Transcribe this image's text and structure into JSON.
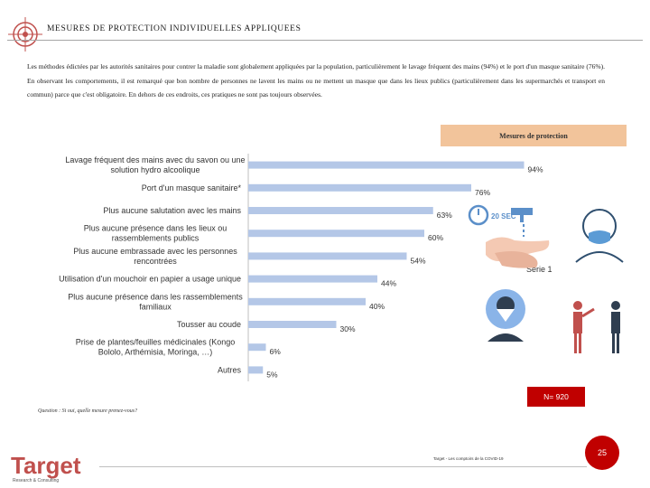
{
  "header": {
    "title": "MESURES DE PROTECTION INDIVIDUELLES APPLIQUEES"
  },
  "intro": {
    "text": "Les méthodes édictées par les autorités sanitaires pour contrer la maladie sont globalement appliquées par la population, particulièrement le lavage fréquent des mains (94%) et le port d'un masque sanitaire (76%). En observant les comportements, il est remarqué que bon nombre de personnes ne lavent les mains ou ne mettent un masque que dans les lieux publics (particulièrement dans les supermarchés et transport en commun) parce que c'est obligatoire. En dehors de ces endroits, ces pratiques ne sont pas toujours observées."
  },
  "legend_box": {
    "label": "Mesures de protection"
  },
  "chart_data": {
    "type": "bar",
    "orientation": "horizontal",
    "title": "Mesures de protection",
    "series": [
      {
        "name": "Série 1",
        "values": [
          94,
          76,
          63,
          60,
          54,
          44,
          40,
          30,
          6,
          5
        ]
      }
    ],
    "categories": [
      "Lavage fréquent des mains avec du savon ou une solution hydro alcoolique",
      "Port d'un masque sanitaire*",
      "Plus aucune salutation avec les mains",
      "Plus aucune présence dans les lieux ou rassemblements publics",
      "Plus aucune embrassade avec les personnes rencontrées",
      "Utilisation d'un mouchoir en papier a usage unique",
      "Plus aucune présence dans les rassemblements familiaux",
      "Tousser au coude",
      "Prise de plantes/feuilles médicinales (Kongo Bololo, Arthémisia, Moringa, …)",
      "Autres"
    ],
    "value_labels": [
      "94%",
      "76%",
      "63%",
      "60%",
      "54%",
      "44%",
      "40%",
      "30%",
      "6%",
      "5%"
    ],
    "xlim": [
      0,
      100
    ],
    "colors": {
      "bar": "#b4c7e7",
      "axis": "#bfbfbf"
    }
  },
  "illustration": {
    "timer_label": "20 SEC"
  },
  "sample": {
    "label": "N= 920"
  },
  "question": {
    "text": "Question : Si oui, quelle mesure prenez-vous?"
  },
  "footer": {
    "brand": "Target",
    "brand_sub": "Research & Consulting",
    "note": "Target - Les comptoirs de la COVID-19",
    "page": "25"
  },
  "colors": {
    "accent": "#c00000",
    "box": "#f2c49b"
  }
}
